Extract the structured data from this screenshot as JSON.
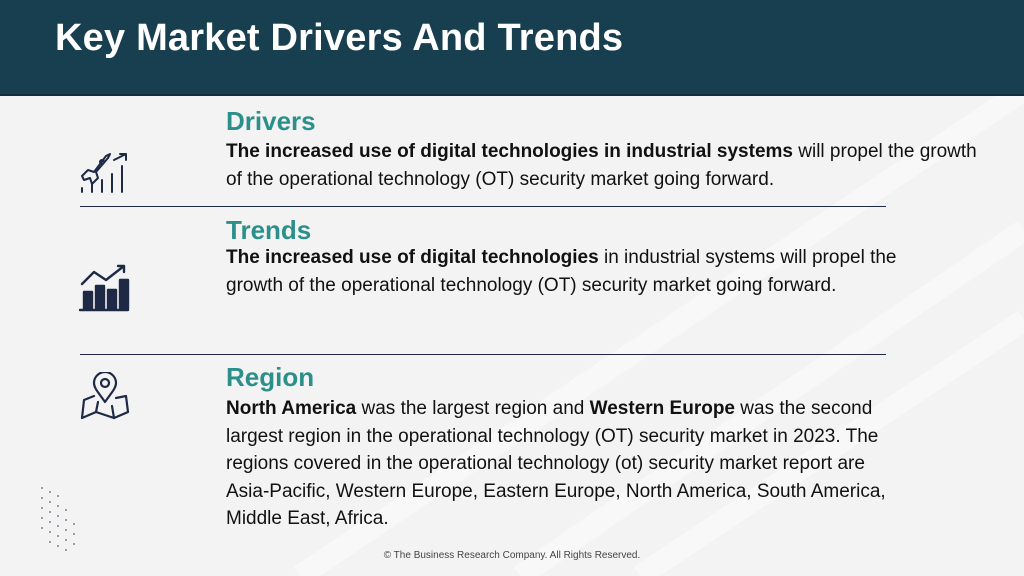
{
  "title": "Key Market Drivers And Trends",
  "sections": [
    {
      "heading": "Drivers",
      "text_bold": "The increased use of digital technologies in industrial systems",
      "text_rest": " will propel the growth of the operational technology (OT) security market going forward.",
      "icon": "rocket-growth-icon"
    },
    {
      "heading": "Trends",
      "text_bold": "The increased use of digital technologies",
      "text_rest": " in industrial systems will propel the growth of the operational technology (OT) security market going forward.",
      "icon": "bar-chart-growth-icon"
    },
    {
      "heading": "Region",
      "text_bold1": "North America",
      "text_mid": " was the largest region and ",
      "text_bold2": "Western Europe",
      "text_rest": " was the second largest region in the operational technology (OT) security market in 2023. The regions covered in the operational technology (ot) security market report are Asia-Pacific, Western Europe, Eastern Europe, North America, South America, Middle East, Africa.",
      "icon": "map-pin-icon"
    }
  ],
  "footer": "© The Business Research Company. All Rights Reserved.",
  "colors": {
    "header_bg": "#173f4f",
    "heading": "#2b8f8a",
    "icon": "#1e2a45"
  }
}
